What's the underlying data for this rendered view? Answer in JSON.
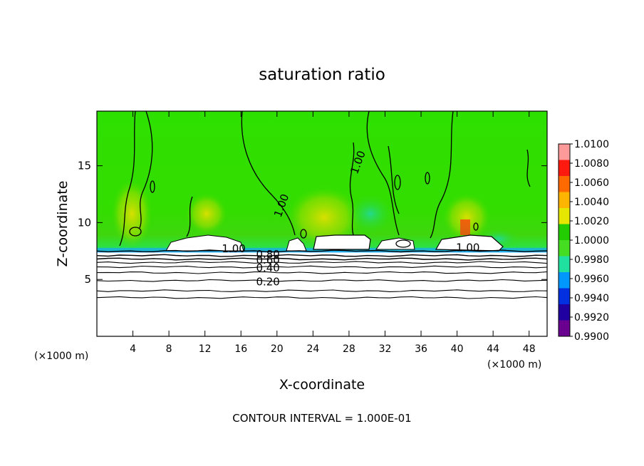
{
  "chart_data": {
    "type": "heatmap",
    "title": "saturation ratio",
    "xlabel": "X-coordinate",
    "ylabel": "Z-coordinate",
    "x_unit_left": "(×1000 m)",
    "x_unit_right": "(×1000 m)",
    "xlim": [
      0,
      50
    ],
    "ylim": [
      0,
      19.8
    ],
    "x_ticks": [
      4,
      8,
      12,
      16,
      20,
      24,
      28,
      32,
      36,
      40,
      44,
      48
    ],
    "y_ticks": [
      5,
      10,
      15
    ],
    "colorbar": {
      "range": [
        0.99,
        1.01
      ],
      "levels": [
        "1.0100",
        "1.0080",
        "1.0060",
        "1.0040",
        "1.0020",
        "1.0000",
        "0.9980",
        "0.9960",
        "0.9940",
        "0.9920",
        "0.9900"
      ],
      "colors": [
        "#ff9a9a",
        "#ff1a10",
        "#ff6a00",
        "#ffb400",
        "#e6e600",
        "#22cc00",
        "#44dd22",
        "#20e0a0",
        "#0098ff",
        "#0030e0",
        "#2000a0",
        "#6a0090"
      ]
    },
    "contour_labels": [
      {
        "text": "1.00",
        "x": 15.2,
        "y": 7.7
      },
      {
        "text": "0.80",
        "x": 19.0,
        "y": 7.2
      },
      {
        "text": "0.60",
        "x": 19.0,
        "y": 6.7
      },
      {
        "text": "0.40",
        "x": 19.0,
        "y": 6.0
      },
      {
        "text": "0.20",
        "x": 19.0,
        "y": 4.8
      },
      {
        "text": "1.00",
        "x": 20.5,
        "y": 11.5
      },
      {
        "text": "1.00",
        "x": 29.0,
        "y": 15.3
      },
      {
        "text": "1.00",
        "x": 41.2,
        "y": 7.8
      }
    ],
    "contour_levels_below_cloud_base": [
      7.5,
      7.1,
      6.8,
      6.5,
      6.1,
      5.6,
      4.9,
      4.0,
      3.4
    ],
    "cloud_base_z": 7.6,
    "footer": "CONTOUR INTERVAL = 1.000E-01"
  }
}
